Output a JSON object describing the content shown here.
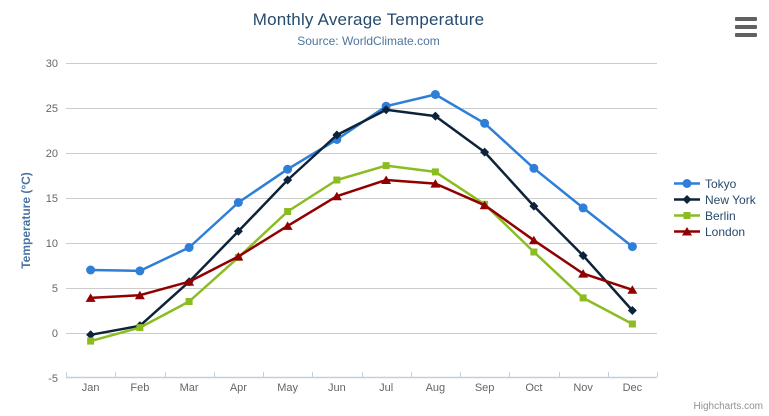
{
  "header": {
    "title": "Monthly Average Temperature",
    "subtitle": "Source: WorldClimate.com"
  },
  "icons": {
    "export_menu": "hamburger-icon"
  },
  "chart_data": {
    "type": "line",
    "title": "Monthly Average Temperature",
    "subtitle": "Source: WorldClimate.com",
    "categories": [
      "Jan",
      "Feb",
      "Mar",
      "Apr",
      "May",
      "Jun",
      "Jul",
      "Aug",
      "Sep",
      "Oct",
      "Nov",
      "Dec"
    ],
    "series": [
      {
        "name": "Tokyo",
        "color": "#2f7ed8",
        "marker": "circle",
        "values": [
          7.0,
          6.9,
          9.5,
          14.5,
          18.2,
          21.5,
          25.2,
          26.5,
          23.3,
          18.3,
          13.9,
          9.6
        ]
      },
      {
        "name": "New York",
        "color": "#0d233a",
        "marker": "diamond",
        "values": [
          -0.2,
          0.8,
          5.7,
          11.3,
          17.0,
          22.0,
          24.8,
          24.1,
          20.1,
          14.1,
          8.6,
          2.5
        ]
      },
      {
        "name": "Berlin",
        "color": "#8bbc21",
        "marker": "square",
        "values": [
          -0.9,
          0.6,
          3.5,
          8.4,
          13.5,
          17.0,
          18.6,
          17.9,
          14.3,
          9.0,
          3.9,
          1.0
        ]
      },
      {
        "name": "London",
        "color": "#910000",
        "marker": "triangle",
        "values": [
          3.9,
          4.2,
          5.7,
          8.5,
          11.9,
          15.2,
          17.0,
          16.6,
          14.2,
          10.3,
          6.6,
          4.8
        ]
      }
    ],
    "xlabel": "",
    "ylabel": "Temperature (°C)",
    "ylim": [
      -5,
      30
    ],
    "yticks": [
      -5,
      0,
      5,
      10,
      15,
      20,
      25,
      30
    ],
    "grid": true,
    "legend_position": "right",
    "colors": {
      "title_text": "#274b6d",
      "subtitle_text": "#4d759e",
      "axis_label": "#666666",
      "axis_title": "#4a74a5",
      "grid_line": "#cccccc",
      "x_axis_line": "#c0d0e0"
    }
  },
  "credit": "Highcharts.com"
}
